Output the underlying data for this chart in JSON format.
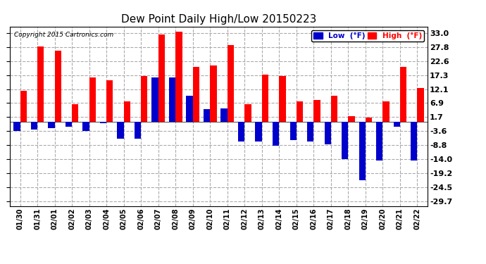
{
  "title": "Dew Point Daily High/Low 20150223",
  "copyright": "Copyright 2015 Cartronics.com",
  "yticks": [
    33.0,
    27.8,
    22.6,
    17.3,
    12.1,
    6.9,
    1.7,
    -3.6,
    -8.8,
    -14.0,
    -19.2,
    -24.5,
    -29.7
  ],
  "dates": [
    "01/30",
    "01/31",
    "02/01",
    "02/02",
    "02/03",
    "02/04",
    "02/05",
    "02/06",
    "02/07",
    "02/08",
    "02/09",
    "02/10",
    "02/11",
    "02/12",
    "02/13",
    "02/14",
    "02/15",
    "02/16",
    "02/17",
    "02/18",
    "02/19",
    "02/20",
    "02/21",
    "02/22"
  ],
  "high": [
    11.5,
    28.0,
    26.5,
    6.5,
    16.5,
    15.5,
    7.5,
    17.0,
    32.5,
    33.5,
    20.5,
    21.0,
    28.5,
    6.5,
    17.5,
    17.0,
    7.5,
    8.0,
    9.5,
    2.0,
    1.5,
    7.5,
    20.5,
    12.5
  ],
  "low": [
    -3.5,
    -3.0,
    -2.5,
    -2.0,
    -3.5,
    -0.5,
    -6.5,
    -6.5,
    16.5,
    16.5,
    9.5,
    4.5,
    5.0,
    -7.5,
    -7.5,
    -9.0,
    -7.0,
    -7.5,
    -8.5,
    -14.0,
    -22.0,
    -14.5,
    -2.0,
    -14.5
  ],
  "bar_width": 0.38,
  "high_color": "#ff0000",
  "low_color": "#0000cc",
  "bg_color": "#ffffff",
  "plot_bg_color": "#ffffff",
  "grid_color": "#aaaaaa",
  "ylim": [
    -31.5,
    35.5
  ],
  "title_fontsize": 11,
  "legend_high_color": "#ff0000",
  "legend_low_color": "#0000cc"
}
